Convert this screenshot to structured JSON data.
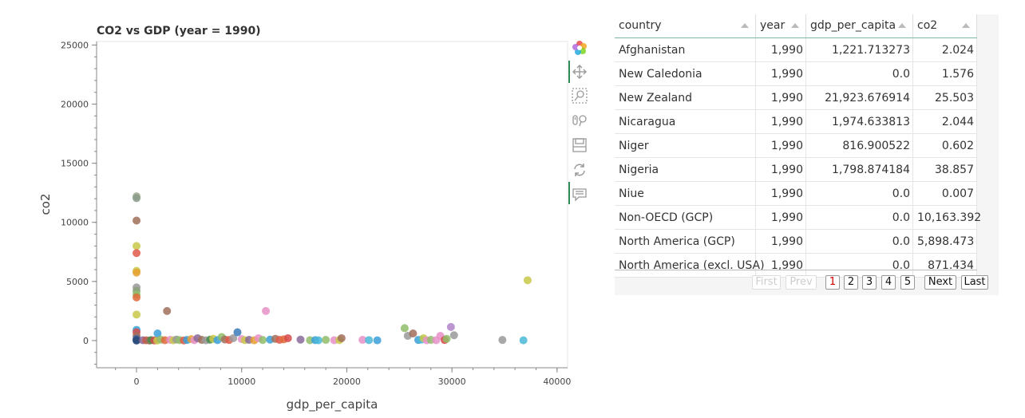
{
  "chart_data": {
    "type": "scatter",
    "title": "CO2 vs GDP (year = 1990)",
    "xlabel": "gdp_per_capita",
    "ylabel": "co2",
    "xlim": [
      -3800,
      41000
    ],
    "ylim": [
      -2300,
      25300
    ],
    "xticks": [
      0,
      10000,
      20000,
      30000,
      40000
    ],
    "yticks": [
      0,
      5000,
      10000,
      15000,
      20000,
      25000
    ],
    "xtick_labels": [
      "0",
      "10000",
      "20000",
      "30000",
      "40000"
    ],
    "ytick_labels": [
      "0",
      "5000",
      "10000",
      "15000",
      "20000",
      "25000"
    ],
    "grid": false,
    "legend": "none",
    "points": [
      {
        "x": 0,
        "y": 12200,
        "color": "#9aa88a"
      },
      {
        "x": 0,
        "y": 12050,
        "color": "#8a9a8a"
      },
      {
        "x": 0,
        "y": 10150,
        "color": "#a0705a"
      },
      {
        "x": 0,
        "y": 8000,
        "color": "#c8c84a"
      },
      {
        "x": 0,
        "y": 7400,
        "color": "#e05a4a"
      },
      {
        "x": 0,
        "y": 5900,
        "color": "#c8c84a"
      },
      {
        "x": 0,
        "y": 5750,
        "color": "#e8a030"
      },
      {
        "x": 0,
        "y": 4500,
        "color": "#999999"
      },
      {
        "x": 0,
        "y": 4200,
        "color": "#8aa07a"
      },
      {
        "x": 0,
        "y": 3900,
        "color": "#8fbc6a"
      },
      {
        "x": 0,
        "y": 3650,
        "color": "#e06a3a"
      },
      {
        "x": 0,
        "y": 2200,
        "color": "#c8c84a"
      },
      {
        "x": 0,
        "y": 900,
        "color": "#3aa0d8"
      },
      {
        "x": 0,
        "y": 700,
        "color": "#d84a4a"
      },
      {
        "x": 0,
        "y": 400,
        "color": "#a0705a"
      },
      {
        "x": 0,
        "y": 150,
        "color": "#4a6aa0"
      },
      {
        "x": 0,
        "y": 50,
        "color": "#3a5a8a"
      },
      {
        "x": 0,
        "y": 0,
        "color": "#2a4a7a"
      },
      {
        "x": 600,
        "y": 30,
        "color": "#8a6a9a"
      },
      {
        "x": 900,
        "y": 20,
        "color": "#c85a4a"
      },
      {
        "x": 1222,
        "y": 2,
        "color": "#a0705a"
      },
      {
        "x": 1400,
        "y": 40,
        "color": "#4a8a4a"
      },
      {
        "x": 1700,
        "y": 10,
        "color": "#d84a4a"
      },
      {
        "x": 1975,
        "y": 2,
        "color": "#c8c84a"
      },
      {
        "x": 2000,
        "y": 600,
        "color": "#3aa0d8"
      },
      {
        "x": 2300,
        "y": 80,
        "color": "#8fbc6a"
      },
      {
        "x": 2700,
        "y": 30,
        "color": "#e06a3a"
      },
      {
        "x": 2900,
        "y": 2500,
        "color": "#a0705a"
      },
      {
        "x": 3200,
        "y": 60,
        "color": "#e890c8"
      },
      {
        "x": 3500,
        "y": 20,
        "color": "#c8c84a"
      },
      {
        "x": 3800,
        "y": 90,
        "color": "#999999"
      },
      {
        "x": 4100,
        "y": 40,
        "color": "#8fbc6a"
      },
      {
        "x": 4500,
        "y": 15,
        "color": "#e05a4a"
      },
      {
        "x": 4800,
        "y": 50,
        "color": "#3aa0d8"
      },
      {
        "x": 5200,
        "y": 120,
        "color": "#e8a030"
      },
      {
        "x": 5500,
        "y": 30,
        "color": "#e890c8"
      },
      {
        "x": 5800,
        "y": 200,
        "color": "#8a6a9a"
      },
      {
        "x": 6200,
        "y": 60,
        "color": "#a0705a"
      },
      {
        "x": 6600,
        "y": 20,
        "color": "#999999"
      },
      {
        "x": 7000,
        "y": 80,
        "color": "#4a8a4a"
      },
      {
        "x": 7300,
        "y": 150,
        "color": "#c8c84a"
      },
      {
        "x": 7700,
        "y": 40,
        "color": "#3aa0d8"
      },
      {
        "x": 8100,
        "y": 300,
        "color": "#8fbc6a"
      },
      {
        "x": 8400,
        "y": 90,
        "color": "#a0705a"
      },
      {
        "x": 8800,
        "y": 50,
        "color": "#e05a4a"
      },
      {
        "x": 9200,
        "y": 200,
        "color": "#999999"
      },
      {
        "x": 9600,
        "y": 700,
        "color": "#3a7ab8"
      },
      {
        "x": 10000,
        "y": 120,
        "color": "#e890c8"
      },
      {
        "x": 10300,
        "y": 40,
        "color": "#c8c84a"
      },
      {
        "x": 10700,
        "y": 60,
        "color": "#8a6a9a"
      },
      {
        "x": 11200,
        "y": 20,
        "color": "#e8a030"
      },
      {
        "x": 11600,
        "y": 200,
        "color": "#e890c8"
      },
      {
        "x": 12000,
        "y": 50,
        "color": "#8fbc6a"
      },
      {
        "x": 12300,
        "y": 2500,
        "color": "#e890c8"
      },
      {
        "x": 12700,
        "y": 80,
        "color": "#3aa0d8"
      },
      {
        "x": 13200,
        "y": 150,
        "color": "#a0705a"
      },
      {
        "x": 13600,
        "y": 60,
        "color": "#e05a4a"
      },
      {
        "x": 14000,
        "y": 100,
        "color": "#e06a3a"
      },
      {
        "x": 14400,
        "y": 200,
        "color": "#d84a4a"
      },
      {
        "x": 15600,
        "y": 80,
        "color": "#8a6a9a"
      },
      {
        "x": 16500,
        "y": 30,
        "color": "#8fbc6a"
      },
      {
        "x": 17000,
        "y": 40,
        "color": "#3aa0d8"
      },
      {
        "x": 17300,
        "y": 20,
        "color": "#4ab8d8"
      },
      {
        "x": 18000,
        "y": 60,
        "color": "#8fbc6a"
      },
      {
        "x": 18800,
        "y": 30,
        "color": "#e890c8"
      },
      {
        "x": 19300,
        "y": 40,
        "color": "#c8c84a"
      },
      {
        "x": 19500,
        "y": 200,
        "color": "#a0705a"
      },
      {
        "x": 21500,
        "y": 60,
        "color": "#e890c8"
      },
      {
        "x": 22100,
        "y": 40,
        "color": "#4ab8d8"
      },
      {
        "x": 22900,
        "y": 20,
        "color": "#3aa0d8"
      },
      {
        "x": 25500,
        "y": 1050,
        "color": "#8fbc6a"
      },
      {
        "x": 25800,
        "y": 400,
        "color": "#999999"
      },
      {
        "x": 26300,
        "y": 600,
        "color": "#a0705a"
      },
      {
        "x": 26800,
        "y": 50,
        "color": "#3aa0d8"
      },
      {
        "x": 27100,
        "y": 80,
        "color": "#4ab8d8"
      },
      {
        "x": 27300,
        "y": 200,
        "color": "#c8c84a"
      },
      {
        "x": 27600,
        "y": 20,
        "color": "#e890c8"
      },
      {
        "x": 28000,
        "y": 60,
        "color": "#8fbc6a"
      },
      {
        "x": 28500,
        "y": 30,
        "color": "#e890c8"
      },
      {
        "x": 28900,
        "y": 400,
        "color": "#e890c8"
      },
      {
        "x": 29300,
        "y": 50,
        "color": "#d84a4a"
      },
      {
        "x": 29500,
        "y": 150,
        "color": "#8fbc6a"
      },
      {
        "x": 29900,
        "y": 1150,
        "color": "#b084c8"
      },
      {
        "x": 30200,
        "y": 450,
        "color": "#999999"
      },
      {
        "x": 34800,
        "y": 50,
        "color": "#999999"
      },
      {
        "x": 36800,
        "y": 20,
        "color": "#4ab8d8"
      },
      {
        "x": 37200,
        "y": 5100,
        "color": "#c8c84a"
      }
    ]
  },
  "toolbar": {
    "icons": [
      "bokeh-logo-icon",
      "pan-icon",
      "box-zoom-icon",
      "wheel-zoom-icon",
      "save-icon",
      "reset-icon",
      "hover-icon"
    ]
  },
  "table": {
    "columns": [
      "country",
      "year",
      "gdp_per_capita",
      "co2"
    ],
    "rows": [
      [
        "Afghanistan",
        "1,990",
        "1,221.713273",
        "2.024"
      ],
      [
        "New Caledonia",
        "1,990",
        "0.0",
        "1.576"
      ],
      [
        "New Zealand",
        "1,990",
        "21,923.676914",
        "25.503"
      ],
      [
        "Nicaragua",
        "1,990",
        "1,974.633813",
        "2.044"
      ],
      [
        "Niger",
        "1,990",
        "816.900522",
        "0.602"
      ],
      [
        "Nigeria",
        "1,990",
        "1,798.874184",
        "38.857"
      ],
      [
        "Niue",
        "1,990",
        "0.0",
        "0.007"
      ],
      [
        "Non-OECD (GCP)",
        "1,990",
        "0.0",
        "10,163.392"
      ],
      [
        "North America (GCP)",
        "1,990",
        "0.0",
        "5,898.473"
      ],
      [
        "North America (excl. USA)",
        "1,990",
        "0.0",
        "871.434"
      ]
    ]
  },
  "pager": {
    "first": "First",
    "prev": "Prev",
    "pages": [
      "1",
      "2",
      "3",
      "4",
      "5"
    ],
    "current": "1",
    "next": "Next",
    "last": "Last"
  }
}
